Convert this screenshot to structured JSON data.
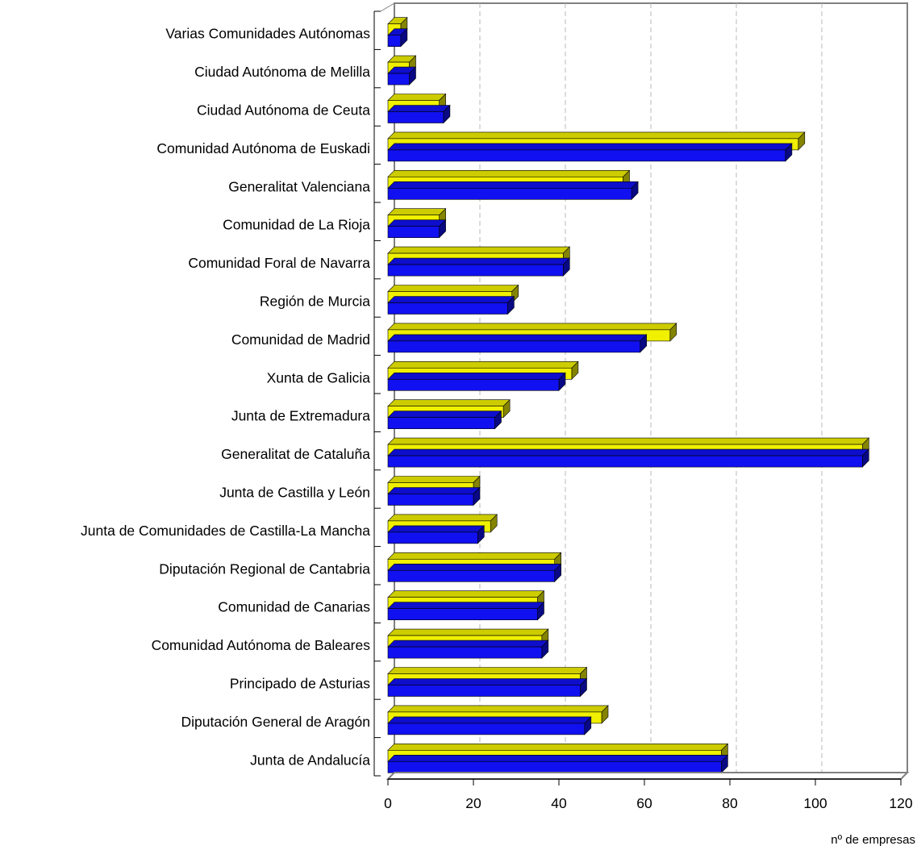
{
  "chart_data": {
    "type": "bar",
    "orientation": "horizontal",
    "categories": [
      "Varias Comunidades Autónomas",
      "Ciudad Autónoma de Melilla",
      "Ciudad Autónoma de Ceuta",
      "Comunidad Autónoma de Euskadi",
      "Generalitat Valenciana",
      "Comunidad de La Rioja",
      "Comunidad Foral de Navarra",
      "Región de Murcia",
      "Comunidad de Madrid",
      "Xunta de Galicia",
      "Junta de Extremadura",
      "Generalitat de Cataluña",
      "Junta de Castilla y León",
      "Junta de Comunidades de Castilla-La Mancha",
      "Diputación Regional de Cantabria",
      "Comunidad de Canarias",
      "Comunidad Autónoma de Baleares",
      "Principado de Asturias",
      "Diputación General de Aragón",
      "Junta de Andalucía"
    ],
    "series": [
      {
        "color": "#f0f000",
        "values": [
          3,
          5,
          12,
          96,
          55,
          12,
          41,
          29,
          66,
          43,
          27,
          111,
          20,
          24,
          39,
          35,
          36,
          45,
          50,
          78
        ]
      },
      {
        "color": "#1010f0",
        "values": [
          3,
          5,
          13,
          93,
          57,
          12,
          41,
          28,
          59,
          40,
          25,
          111,
          20,
          21,
          39,
          35,
          36,
          45,
          46,
          78
        ]
      }
    ],
    "xlabel": "nº de empresas",
    "ylabel": "",
    "xlim": [
      0,
      120
    ],
    "xticks": [
      0,
      20,
      40,
      60,
      80,
      100,
      120
    ],
    "grid": "vertical-dashed",
    "legend": "none",
    "style": "3d"
  }
}
